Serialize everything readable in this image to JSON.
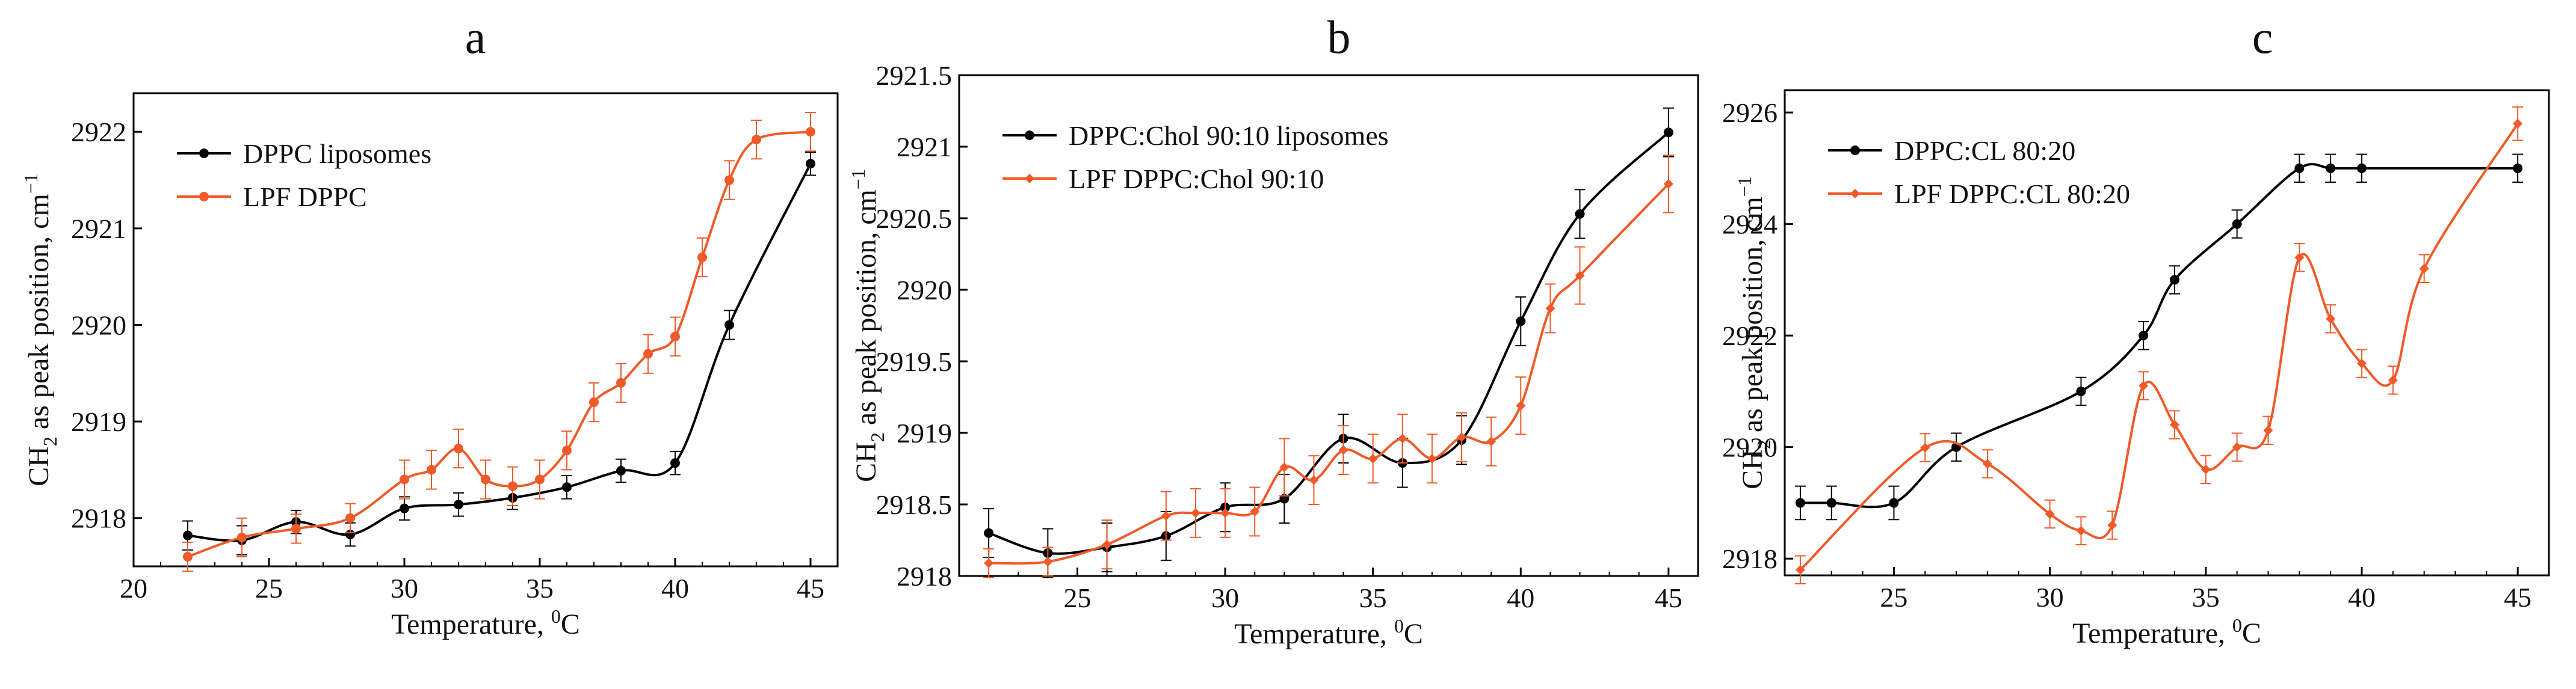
{
  "chart_data": [
    {
      "panel": "a",
      "type": "line",
      "xlabel": "Temperature, ",
      "xlabel_sup": "0",
      "xlabel_unit": "C",
      "ylabel_main": "CH",
      "ylabel_sub": "2",
      "ylabel_rest": " as peak position, cm",
      "ylabel_sup": "−1",
      "xlim": [
        20,
        46
      ],
      "ylim": [
        2917.5,
        2922.4
      ],
      "xticks": [
        20,
        25,
        30,
        35,
        40,
        45
      ],
      "yticks": [
        2918,
        2919,
        2920,
        2921,
        2922
      ],
      "legend": "top-left",
      "series": [
        {
          "name": "DPPC liposomes",
          "color": "#000000",
          "marker": "circle",
          "x": [
            22,
            24,
            26,
            28,
            30,
            32,
            34,
            36,
            38,
            40,
            42,
            45
          ],
          "y": [
            2917.82,
            2917.77,
            2917.96,
            2917.83,
            2918.1,
            2918.14,
            2918.21,
            2918.32,
            2918.49,
            2918.57,
            2920.0,
            2921.67
          ],
          "err": [
            0.15,
            0.15,
            0.12,
            0.12,
            0.12,
            0.12,
            0.12,
            0.12,
            0.12,
            0.12,
            0.15,
            0.12
          ]
        },
        {
          "name": "LPF DPPC",
          "color": "#f05a28",
          "marker": "circle",
          "x": [
            22,
            24,
            26,
            28,
            30,
            31,
            32,
            33,
            34,
            35,
            36,
            37,
            38,
            39,
            40,
            41,
            42,
            43,
            45
          ],
          "y": [
            2917.6,
            2917.8,
            2917.89,
            2918.0,
            2918.4,
            2918.5,
            2918.72,
            2918.4,
            2918.33,
            2918.4,
            2918.7,
            2919.2,
            2919.4,
            2919.7,
            2919.88,
            2920.7,
            2921.5,
            2921.92,
            2922.0
          ],
          "err": [
            0.15,
            0.2,
            0.15,
            0.15,
            0.2,
            0.2,
            0.2,
            0.2,
            0.2,
            0.2,
            0.2,
            0.2,
            0.2,
            0.2,
            0.2,
            0.2,
            0.2,
            0.2,
            0.2
          ]
        }
      ]
    },
    {
      "panel": "b",
      "type": "line",
      "xlabel": "Temperature, ",
      "xlabel_sup": "0",
      "xlabel_unit": "C",
      "ylabel_main": "CH",
      "ylabel_sub": "2",
      "ylabel_rest": " as peak position, cm",
      "ylabel_sup": "−1",
      "xlim": [
        21,
        46
      ],
      "ylim": [
        2918,
        2921.5
      ],
      "xticks": [
        25,
        30,
        35,
        40,
        45
      ],
      "yticks": [
        2918,
        2918.5,
        2919,
        2919.5,
        2920,
        2920.5,
        2921,
        2921.5
      ],
      "legend": "top-left",
      "series": [
        {
          "name": "DPPC:Chol 90:10 liposomes",
          "color": "#000000",
          "marker": "circle",
          "x": [
            22,
            24,
            26,
            28,
            30,
            32,
            34,
            36,
            38,
            40,
            42,
            45
          ],
          "y": [
            2918.3,
            2918.16,
            2918.2,
            2918.28,
            2918.48,
            2918.54,
            2918.96,
            2918.79,
            2918.95,
            2919.78,
            2920.53,
            2921.1
          ],
          "err": [
            0.17,
            0.17,
            0.17,
            0.17,
            0.17,
            0.17,
            0.17,
            0.17,
            0.17,
            0.17,
            0.17,
            0.17
          ]
        },
        {
          "name": "LPF DPPC:Chol 90:10",
          "color": "#f05a28",
          "marker": "diamond",
          "x": [
            22,
            24,
            26,
            28,
            29,
            30,
            31,
            32,
            33,
            34,
            35,
            36,
            37,
            38,
            39,
            40,
            41,
            42,
            45
          ],
          "y": [
            2918.09,
            2918.1,
            2918.22,
            2918.42,
            2918.44,
            2918.44,
            2918.45,
            2918.76,
            2918.67,
            2918.88,
            2918.82,
            2918.96,
            2918.82,
            2918.97,
            2918.94,
            2919.19,
            2919.87,
            2920.1,
            2920.74
          ],
          "err": [
            0.1,
            0.1,
            0.17,
            0.17,
            0.17,
            0.17,
            0.17,
            0.2,
            0.17,
            0.17,
            0.17,
            0.17,
            0.17,
            0.17,
            0.17,
            0.2,
            0.17,
            0.2,
            0.2
          ]
        }
      ]
    },
    {
      "panel": "c",
      "type": "line",
      "xlabel": "Temperature, ",
      "xlabel_sup": "0",
      "xlabel_unit": "C",
      "ylabel_main": "CH",
      "ylabel_sub": "2",
      "ylabel_rest": " as peak position, cm",
      "ylabel_sup": "−1",
      "xlim": [
        21.5,
        46
      ],
      "ylim": [
        2917.7,
        2926.4
      ],
      "xticks": [
        25,
        30,
        35,
        40,
        45
      ],
      "yticks": [
        2918,
        2920,
        2922,
        2924,
        2926
      ],
      "legend": "top-left",
      "series": [
        {
          "name": "DPPC:CL 80:20",
          "color": "#000000",
          "marker": "circle",
          "x": [
            22,
            23,
            25,
            27,
            31,
            33,
            34,
            36,
            38,
            39,
            40,
            45
          ],
          "y": [
            2919.0,
            2919.0,
            2919.0,
            2920.0,
            2921.0,
            2922.0,
            2923.0,
            2924.0,
            2925.0,
            2925.0,
            2925.0,
            2925.0
          ],
          "err": [
            0.3,
            0.3,
            0.3,
            0.25,
            0.25,
            0.25,
            0.25,
            0.25,
            0.25,
            0.25,
            0.25,
            0.25
          ]
        },
        {
          "name": "LPF DPPC:CL 80:20",
          "color": "#f05a28",
          "marker": "diamond",
          "x": [
            22,
            26,
            28,
            30,
            31,
            32,
            33,
            34,
            35,
            36,
            37,
            38,
            39,
            40,
            41,
            42,
            45
          ],
          "y": [
            2917.8,
            2919.99,
            2919.7,
            2918.8,
            2918.5,
            2918.6,
            2921.1,
            2920.4,
            2919.6,
            2920.0,
            2920.3,
            2923.4,
            2922.3,
            2921.5,
            2921.2,
            2923.2,
            2925.8
          ],
          "err": [
            0.25,
            0.25,
            0.25,
            0.25,
            0.25,
            0.25,
            0.25,
            0.25,
            0.25,
            0.25,
            0.25,
            0.25,
            0.25,
            0.25,
            0.25,
            0.25,
            0.3
          ]
        }
      ]
    }
  ]
}
